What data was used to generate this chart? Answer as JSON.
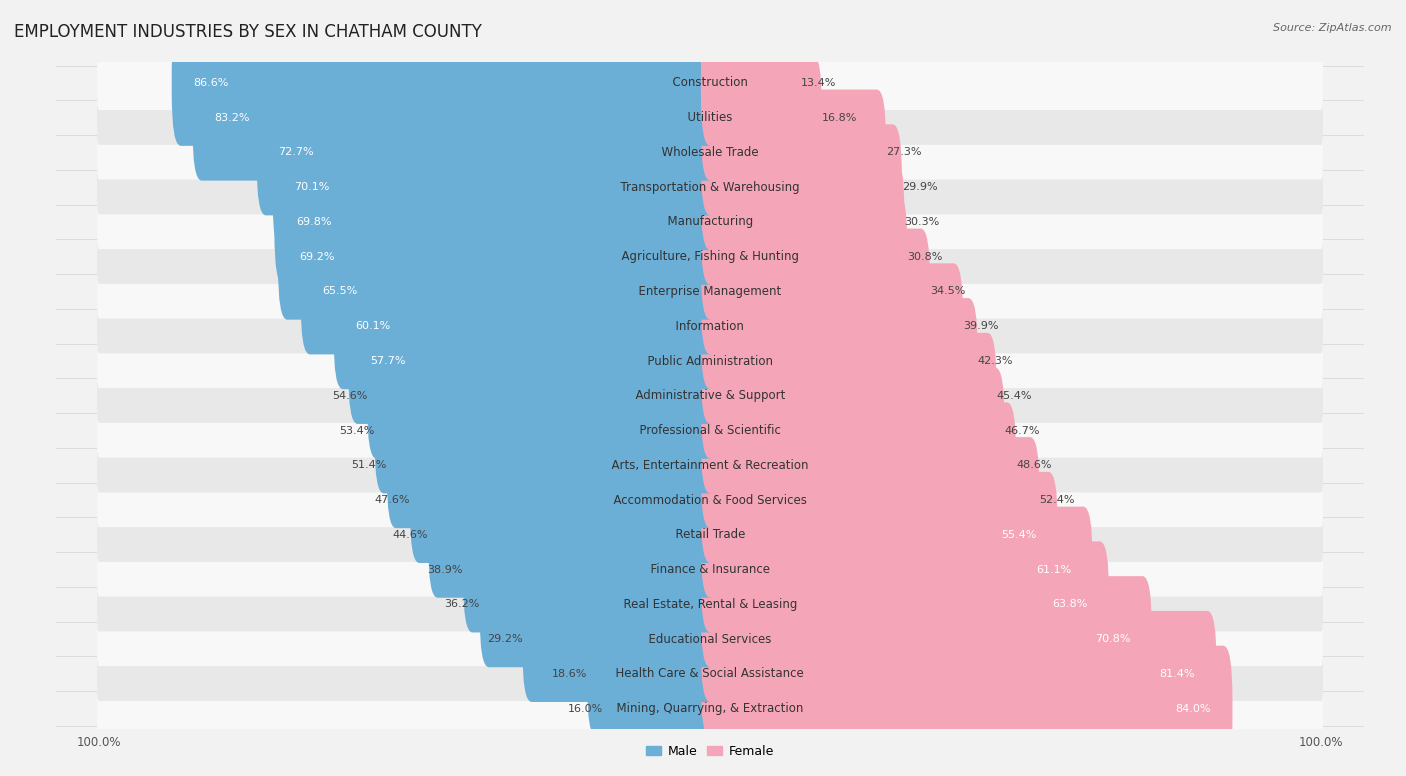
{
  "title": "EMPLOYMENT INDUSTRIES BY SEX IN CHATHAM COUNTY",
  "source": "Source: ZipAtlas.com",
  "industries": [
    "Construction",
    "Utilities",
    "Wholesale Trade",
    "Transportation & Warehousing",
    "Manufacturing",
    "Agriculture, Fishing & Hunting",
    "Enterprise Management",
    "Information",
    "Public Administration",
    "Administrative & Support",
    "Professional & Scientific",
    "Arts, Entertainment & Recreation",
    "Accommodation & Food Services",
    "Retail Trade",
    "Finance & Insurance",
    "Real Estate, Rental & Leasing",
    "Educational Services",
    "Health Care & Social Assistance",
    "Mining, Quarrying, & Extraction"
  ],
  "male_pct": [
    86.6,
    83.2,
    72.7,
    70.1,
    69.8,
    69.2,
    65.5,
    60.1,
    57.7,
    54.6,
    53.4,
    51.4,
    47.6,
    44.6,
    38.9,
    36.2,
    29.2,
    18.6,
    16.0
  ],
  "female_pct": [
    13.4,
    16.8,
    27.3,
    29.9,
    30.3,
    30.8,
    34.5,
    39.9,
    42.3,
    45.4,
    46.7,
    48.6,
    52.4,
    55.4,
    61.1,
    63.8,
    70.8,
    81.4,
    84.0
  ],
  "male_color": "#6baed6",
  "female_color": "#f4a6b8",
  "bg_color": "#f2f2f2",
  "row_color_odd": "#e8e8e8",
  "row_color_even": "#f8f8f8",
  "title_fontsize": 12,
  "label_fontsize": 8.5,
  "value_fontsize": 8,
  "legend_fontsize": 9,
  "source_fontsize": 8,
  "male_label_threshold": 55,
  "female_label_threshold": 55
}
